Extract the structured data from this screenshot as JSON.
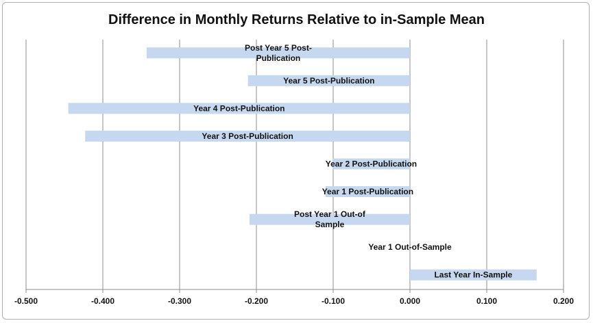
{
  "chart_data": {
    "type": "bar",
    "orientation": "horizontal",
    "title": "Difference in Monthly Returns Relative to in-Sample Mean",
    "xlim": [
      -0.5,
      0.2
    ],
    "x_ticks": [
      "-0.500",
      "-0.400",
      "-0.300",
      "-0.200",
      "-0.100",
      "0.000",
      "0.100",
      "0.200"
    ],
    "x_tick_values": [
      -0.5,
      -0.4,
      -0.3,
      -0.2,
      -0.1,
      0.0,
      0.1,
      0.2
    ],
    "grid": "vertical",
    "bar_color": "#c6d8ef",
    "categories": [
      {
        "label_lines": [
          "Post Year 5 Post-",
          "Publication"
        ],
        "value": -0.343
      },
      {
        "label_lines": [
          "Year 5 Post-Publication"
        ],
        "value": -0.211
      },
      {
        "label_lines": [
          "Year 4 Post-Publication"
        ],
        "value": -0.445
      },
      {
        "label_lines": [
          "Year 3 Post-Publication"
        ],
        "value": -0.423
      },
      {
        "label_lines": [
          "Year 2 Post-Publication"
        ],
        "value": -0.101
      },
      {
        "label_lines": [
          "Year 1 Post-Publication"
        ],
        "value": -0.11
      },
      {
        "label_lines": [
          "Post Year 1 Out-of",
          "Sample"
        ],
        "value": -0.209
      },
      {
        "label_lines": [
          "Year 1 Out-of-Sample"
        ],
        "value": 0.0
      },
      {
        "label_lines": [
          "Last Year In-Sample"
        ],
        "value": 0.165
      }
    ]
  }
}
